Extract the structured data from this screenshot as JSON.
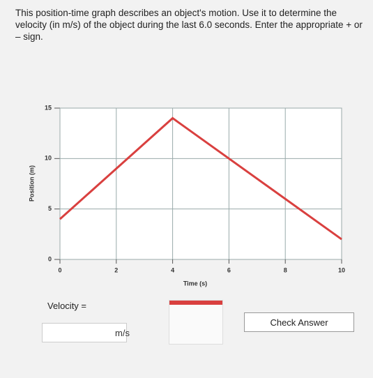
{
  "question": "This position-time graph describes an object's motion. Use it to determine the velocity (in m/s) of the object during the last 6.0 seconds. Enter the appropriate + or – sign.",
  "chart_data": {
    "type": "line",
    "xlabel": "Time (s)",
    "ylabel": "Position (m)",
    "x": [
      0,
      4,
      10
    ],
    "values": [
      4,
      14,
      2
    ],
    "color": "#d9403f",
    "xlim": [
      0,
      10
    ],
    "ylim": [
      0,
      15
    ],
    "xticks": [
      0,
      2,
      4,
      6,
      8,
      10
    ],
    "yticks": [
      0,
      5,
      10,
      15
    ],
    "grid": true
  },
  "form": {
    "label": "Velocity =",
    "unit": "m/s",
    "button": "Check Answer"
  }
}
